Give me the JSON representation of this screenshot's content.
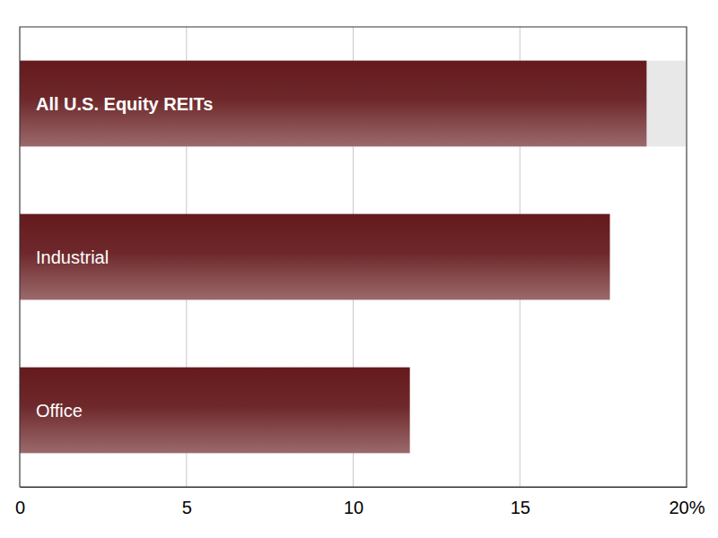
{
  "chart_data": {
    "type": "bar",
    "orientation": "horizontal",
    "categories": [
      "All U.S. Equity REITs",
      "Industrial",
      "Office"
    ],
    "values": [
      18.8,
      17.7,
      11.7
    ],
    "color": "#651a1d",
    "xlim": [
      0,
      20
    ],
    "xticks": [
      0,
      5,
      10,
      15,
      {
        "value": 20,
        "label": "20%"
      }
    ],
    "grid": true
  }
}
